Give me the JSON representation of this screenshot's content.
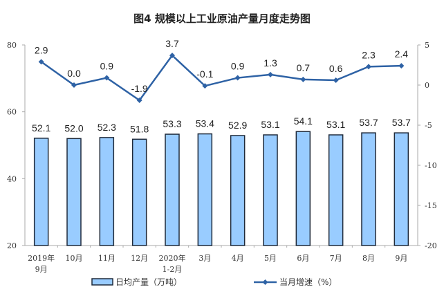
{
  "title": "图4  规模以上工业原油产量月度走势图",
  "colors": {
    "bar_fill": "#99ccff",
    "bar_stroke": "#1f2a3a",
    "line": "#2e62a5",
    "axis": "#aaaaaa"
  },
  "legend": {
    "bar": "日均产量（万吨）",
    "line": "当月增速（%）"
  },
  "chart_data": {
    "type": "bar+line",
    "title": "图4  规模以上工业原油产量月度走势图",
    "categories": [
      "2019年\n9月",
      "10月",
      "11月",
      "12月",
      "2020年\n1-2月",
      "3月",
      "4月",
      "5月",
      "6月",
      "7月",
      "8月",
      "9月"
    ],
    "series": [
      {
        "name": "日均产量（万吨）",
        "type": "bar",
        "axis": "left",
        "values": [
          52.1,
          52.0,
          52.3,
          51.8,
          53.3,
          53.4,
          52.9,
          53.1,
          54.1,
          53.1,
          53.7,
          53.7
        ]
      },
      {
        "name": "当月增速（%）",
        "type": "line",
        "axis": "right",
        "values": [
          2.9,
          0.0,
          0.9,
          -1.9,
          3.7,
          -0.1,
          0.9,
          1.3,
          0.7,
          0.6,
          2.3,
          2.4
        ]
      }
    ],
    "left_axis": {
      "ylim": [
        20,
        80
      ],
      "ticks": [
        20,
        40,
        60,
        80
      ]
    },
    "right_axis": {
      "ylim": [
        -20,
        5
      ],
      "ticks": [
        -20,
        -15,
        -10,
        -5,
        0,
        5
      ]
    },
    "xlabel": "",
    "ylabel": "",
    "grid": false,
    "legend_position": "bottom"
  }
}
